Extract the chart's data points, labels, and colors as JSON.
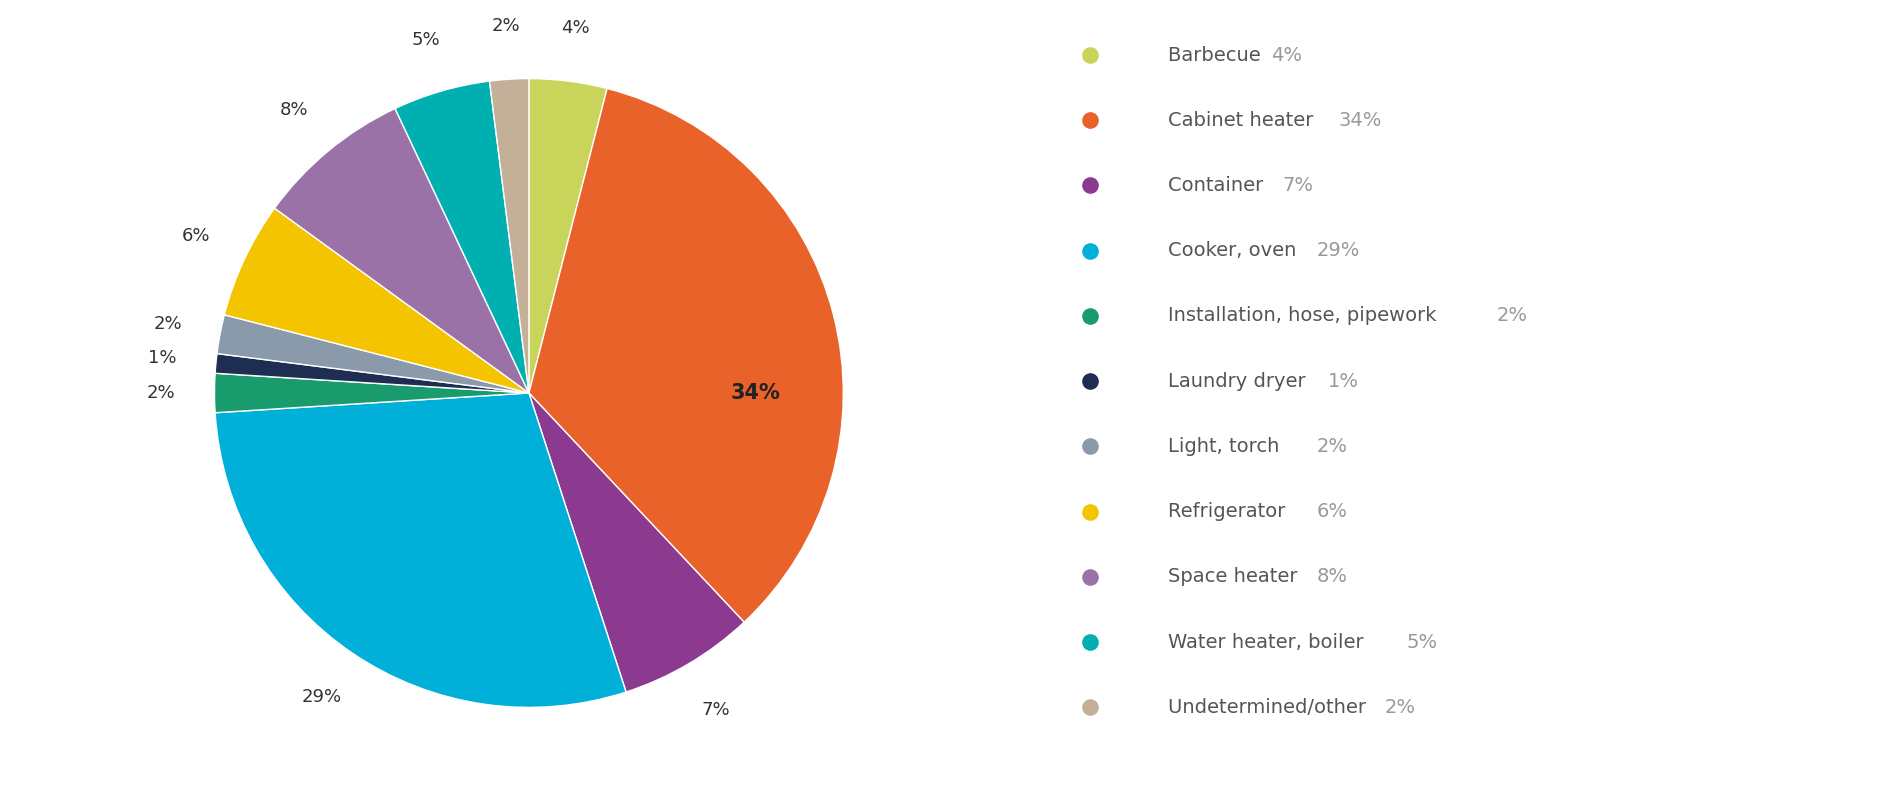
{
  "labels": [
    "Barbecue",
    "Cabinet heater",
    "Container",
    "Cooker, oven",
    "Installation, hose, pipework",
    "Laundry dryer",
    "Light, torch",
    "Refrigerator",
    "Space heater",
    "Water heater, boiler",
    "Undetermined/other"
  ],
  "values": [
    4,
    34,
    7,
    29,
    2,
    1,
    2,
    6,
    8,
    5,
    2
  ],
  "colors": [
    "#c8d45a",
    "#e8622a",
    "#8b3a8f",
    "#00b0d8",
    "#1a9b6e",
    "#1e2d52",
    "#8a9aaa",
    "#f5c400",
    "#9b72a8",
    "#00b0b0",
    "#c4b098"
  ],
  "pct_labels": [
    "4%",
    "34%",
    "7%",
    "29%",
    "2%",
    "1%",
    "2%",
    "6%",
    "8%",
    "5%",
    "2%"
  ],
  "legend_names": [
    "Barbecue",
    "Cabinet heater",
    "Container",
    "Cooker, oven",
    "Installation, hose, pipework",
    "Laundry dryer",
    "Light, torch",
    "Refrigerator",
    "Space heater",
    "Water heater, boiler",
    "Undetermined/other"
  ],
  "legend_pcts": [
    "4%",
    "34%",
    "7%",
    "29%",
    "2%",
    "1%",
    "2%",
    "6%",
    "8%",
    "5%",
    "2%"
  ],
  "background_color": "#ffffff",
  "label_color": "#333333",
  "legend_name_color": "#555555",
  "legend_pct_color": "#999999",
  "label_fontsize": 13,
  "legend_fontsize": 14,
  "startangle": 90
}
